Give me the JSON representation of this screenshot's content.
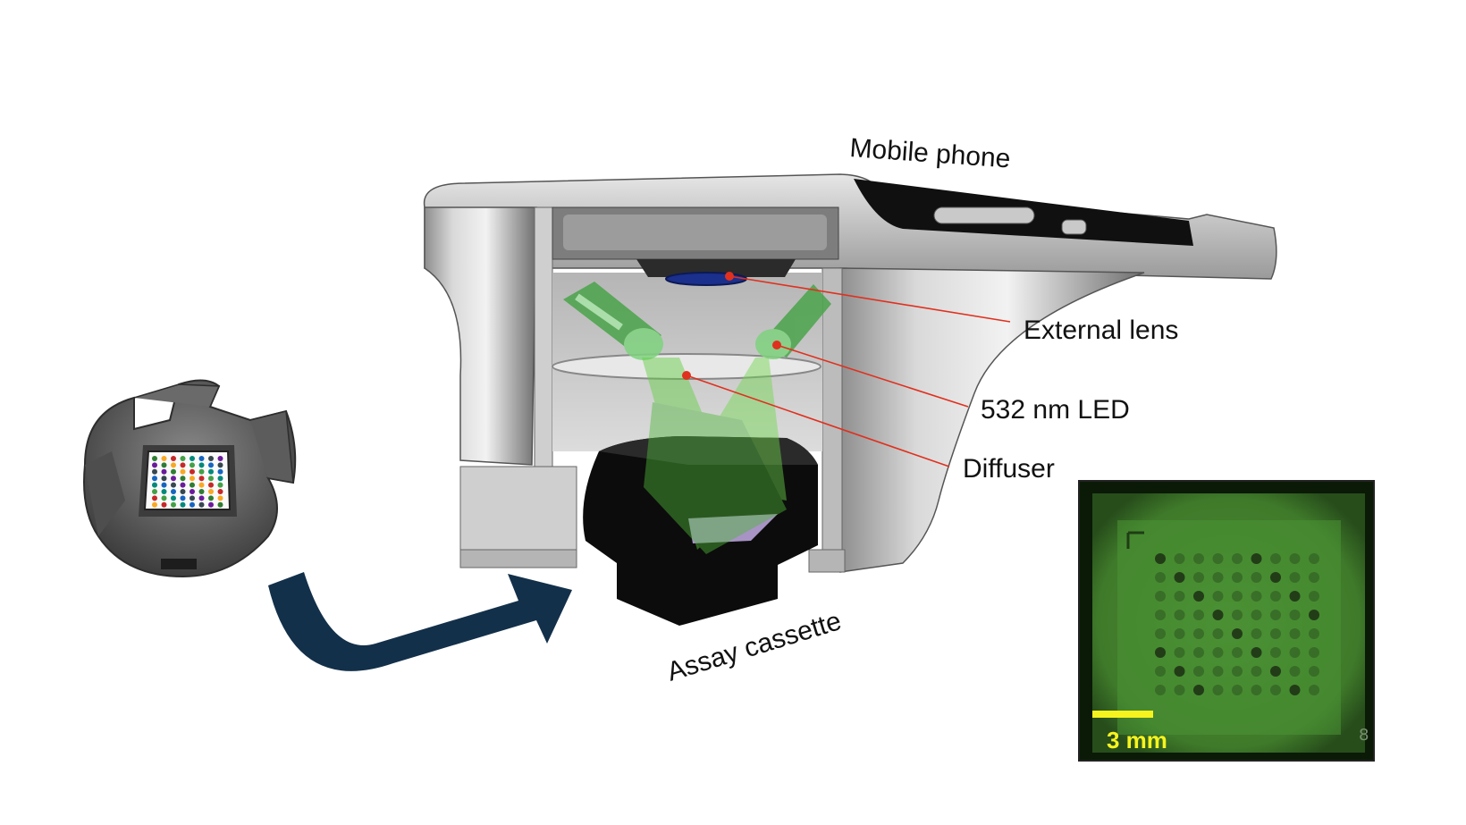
{
  "labels": {
    "mobile_phone": "Mobile phone",
    "external_lens": "External lens",
    "led": "532 nm LED",
    "diffuser": "Diffuser",
    "assay_cassette": "Assay cassette"
  },
  "inset": {
    "scale_bar_text": "3 mm",
    "corner_number": "8"
  },
  "colors": {
    "annotation_line": "#e0301e",
    "arrow": "#13304a",
    "fluorescence_green": "#3f7f2a",
    "scale_bar": "#f7f31e"
  },
  "icons": [
    "curved-arrow-icon"
  ]
}
